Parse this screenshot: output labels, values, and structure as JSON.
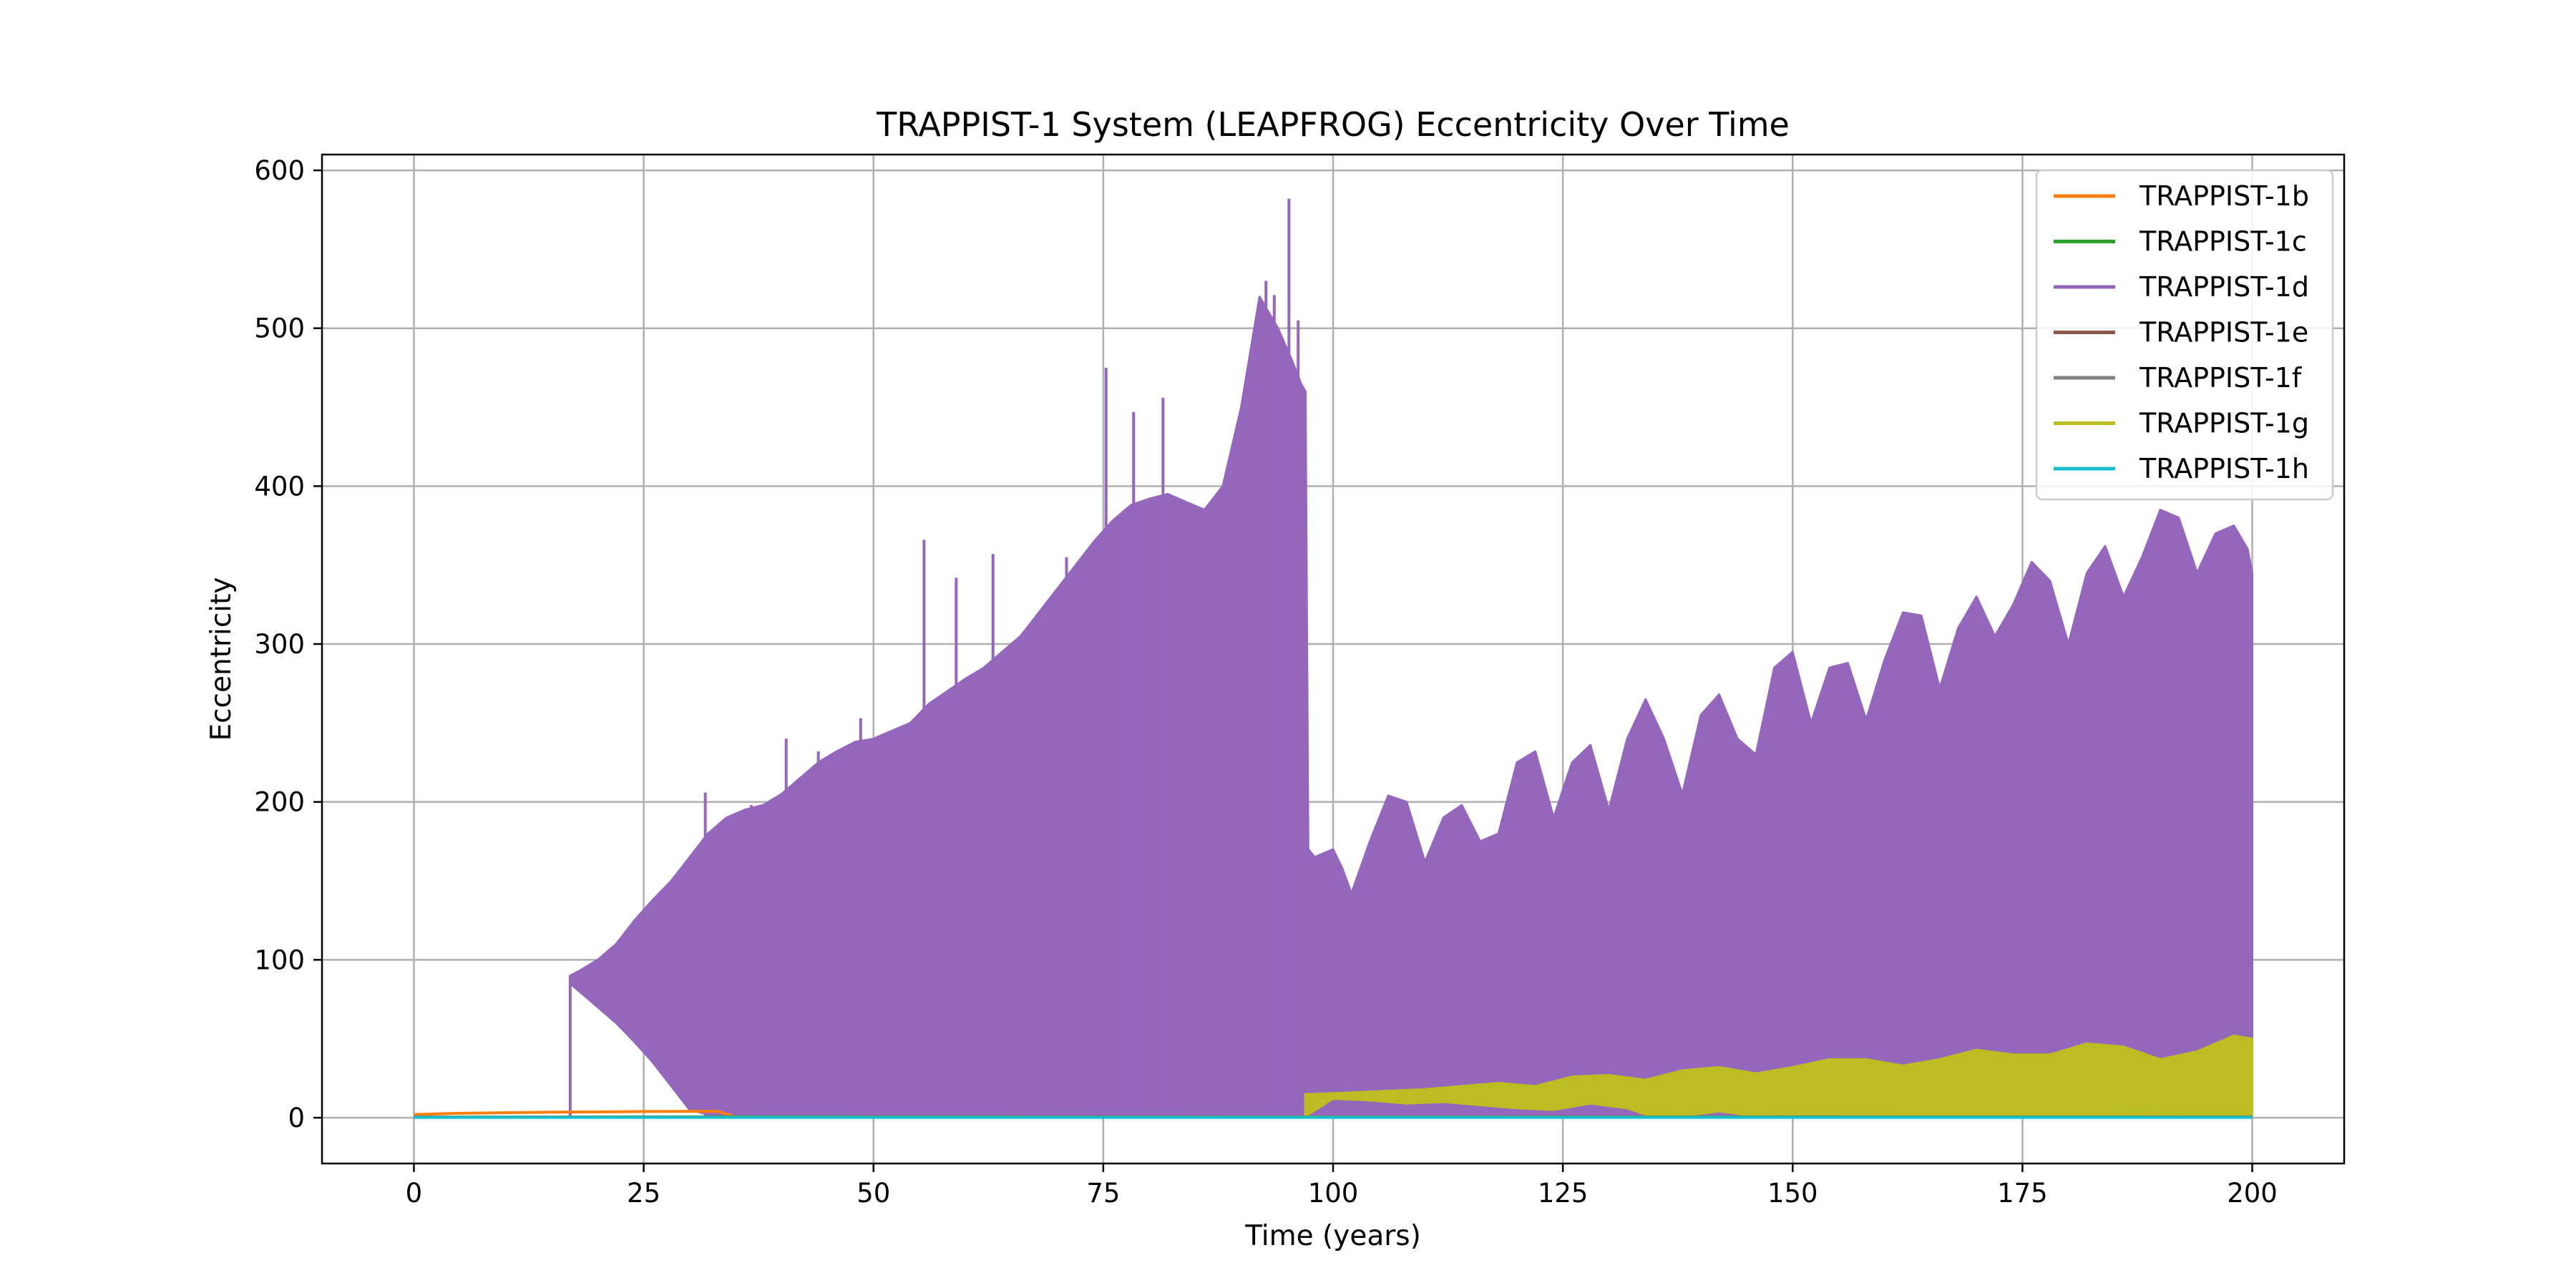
{
  "chart_data": {
    "type": "line",
    "title": "TRAPPIST-1 System (LEAPFROG) Eccentricity Over Time",
    "xlabel": "Time (years)",
    "ylabel": "Eccentricity",
    "xlim": [
      -10,
      210
    ],
    "ylim": [
      -29,
      610
    ],
    "xticks": [
      0,
      25,
      50,
      75,
      100,
      125,
      150,
      175,
      200
    ],
    "yticks": [
      0,
      100,
      200,
      300,
      400,
      500,
      600
    ],
    "grid": true,
    "legend_position": "top-right",
    "series": [
      {
        "name": "TRAPPIST-1b",
        "color": "#ff7f0e",
        "points": [
          [
            0,
            2
          ],
          [
            5,
            2.8
          ],
          [
            10,
            3.2
          ],
          [
            15,
            3.5
          ],
          [
            20,
            3.7
          ],
          [
            25,
            3.9
          ],
          [
            30,
            4.0
          ],
          [
            33,
            4.1
          ],
          [
            34.5,
            1.5
          ],
          [
            35,
            0.5
          ],
          [
            200,
            0.5
          ]
        ]
      },
      {
        "name": "TRAPPIST-1c",
        "color": "#2ca02c",
        "points": [
          [
            0,
            0.4
          ],
          [
            35,
            0.6
          ],
          [
            100,
            0.4
          ],
          [
            150,
            0.5
          ],
          [
            200,
            0.4
          ]
        ]
      },
      {
        "name": "TRAPPIST-1d",
        "color": "#9467bd",
        "upper_envelope": [
          [
            17,
            90
          ],
          [
            18,
            93
          ],
          [
            20,
            100
          ],
          [
            22,
            110
          ],
          [
            24,
            125
          ],
          [
            26,
            138
          ],
          [
            28,
            150
          ],
          [
            30,
            165
          ],
          [
            32,
            180
          ],
          [
            34,
            190
          ],
          [
            36,
            195
          ],
          [
            38,
            198
          ],
          [
            40,
            205
          ],
          [
            42,
            215
          ],
          [
            44,
            225
          ],
          [
            46,
            232
          ],
          [
            48,
            238
          ],
          [
            50,
            240
          ],
          [
            52,
            245
          ],
          [
            54,
            250
          ],
          [
            56,
            262
          ],
          [
            58,
            270
          ],
          [
            60,
            278
          ],
          [
            62,
            285
          ],
          [
            64,
            295
          ],
          [
            66,
            305
          ],
          [
            68,
            320
          ],
          [
            70,
            335
          ],
          [
            72,
            350
          ],
          [
            74,
            365
          ],
          [
            76,
            378
          ],
          [
            78,
            388
          ],
          [
            80,
            392
          ],
          [
            82,
            395
          ],
          [
            84,
            390
          ],
          [
            86,
            385
          ],
          [
            88,
            400
          ],
          [
            90,
            450
          ],
          [
            92,
            520
          ],
          [
            94,
            500
          ],
          [
            95.5,
            480
          ],
          [
            96.5,
            465
          ],
          [
            97,
            460
          ],
          [
            97.3,
            170
          ],
          [
            98,
            165
          ],
          [
            100,
            170
          ],
          [
            101,
            158
          ],
          [
            102,
            142
          ],
          [
            104,
            175
          ],
          [
            106,
            204
          ],
          [
            108,
            200
          ],
          [
            110,
            162
          ],
          [
            112,
            190
          ],
          [
            114,
            198
          ],
          [
            116,
            175
          ],
          [
            118,
            180
          ],
          [
            120,
            225
          ],
          [
            122,
            232
          ],
          [
            124,
            190
          ],
          [
            126,
            225
          ],
          [
            128,
            236
          ],
          [
            130,
            195
          ],
          [
            132,
            240
          ],
          [
            134,
            265
          ],
          [
            136,
            240
          ],
          [
            138,
            205
          ],
          [
            140,
            255
          ],
          [
            142,
            268
          ],
          [
            144,
            240
          ],
          [
            146,
            230
          ],
          [
            148,
            285
          ],
          [
            150,
            295
          ],
          [
            152,
            250
          ],
          [
            154,
            285
          ],
          [
            156,
            288
          ],
          [
            158,
            252
          ],
          [
            160,
            290
          ],
          [
            162,
            320
          ],
          [
            164,
            318
          ],
          [
            166,
            272
          ],
          [
            168,
            310
          ],
          [
            170,
            330
          ],
          [
            172,
            305
          ],
          [
            174,
            325
          ],
          [
            176,
            352
          ],
          [
            178,
            340
          ],
          [
            180,
            300
          ],
          [
            182,
            345
          ],
          [
            184,
            362
          ],
          [
            186,
            330
          ],
          [
            188,
            355
          ],
          [
            190,
            385
          ],
          [
            192,
            380
          ],
          [
            194,
            345
          ],
          [
            196,
            370
          ],
          [
            198,
            375
          ],
          [
            199.5,
            360
          ],
          [
            200,
            345
          ]
        ],
        "lower_envelope": [
          [
            17,
            85
          ],
          [
            18,
            80
          ],
          [
            20,
            70
          ],
          [
            22,
            60
          ],
          [
            24,
            48
          ],
          [
            26,
            35
          ],
          [
            28,
            20
          ],
          [
            30,
            5
          ],
          [
            32,
            2
          ],
          [
            200,
            2
          ]
        ],
        "spikes": [
          [
            55.5,
            366
          ],
          [
            59,
            342
          ],
          [
            63,
            357
          ],
          [
            71,
            355
          ],
          [
            75.3,
            475
          ],
          [
            78.3,
            447
          ],
          [
            81.5,
            456
          ],
          [
            92.7,
            530
          ],
          [
            93.6,
            521
          ],
          [
            95.2,
            582
          ],
          [
            96.2,
            505
          ],
          [
            40.5,
            240
          ],
          [
            44,
            232
          ],
          [
            48.6,
            253
          ],
          [
            31.7,
            206
          ],
          [
            36.7,
            198
          ]
        ]
      },
      {
        "name": "TRAPPIST-1e",
        "color": "#8c564b",
        "points": [
          [
            0,
            0.3
          ],
          [
            200,
            0.3
          ]
        ]
      },
      {
        "name": "TRAPPIST-1f",
        "color": "#7f7f7f",
        "points": [
          [
            0,
            0.3
          ],
          [
            200,
            0.3
          ]
        ]
      },
      {
        "name": "TRAPPIST-1g",
        "color": "#bcbd22",
        "upper_envelope": [
          [
            97,
            15
          ],
          [
            98,
            15
          ],
          [
            102,
            16
          ],
          [
            106,
            17
          ],
          [
            110,
            18
          ],
          [
            114,
            20
          ],
          [
            118,
            22
          ],
          [
            122,
            20
          ],
          [
            126,
            26
          ],
          [
            130,
            27
          ],
          [
            134,
            24
          ],
          [
            138,
            30
          ],
          [
            142,
            32
          ],
          [
            146,
            28
          ],
          [
            150,
            32
          ],
          [
            154,
            37
          ],
          [
            158,
            37
          ],
          [
            162,
            33
          ],
          [
            166,
            37
          ],
          [
            170,
            43
          ],
          [
            174,
            40
          ],
          [
            178,
            40
          ],
          [
            182,
            47
          ],
          [
            186,
            45
          ],
          [
            190,
            37
          ],
          [
            194,
            42
          ],
          [
            198,
            52
          ],
          [
            200,
            50
          ]
        ],
        "lower_envelope": [
          [
            97,
            1
          ],
          [
            100,
            12
          ],
          [
            104,
            11
          ],
          [
            108,
            9
          ],
          [
            112,
            10
          ],
          [
            116,
            8
          ],
          [
            120,
            6
          ],
          [
            124,
            5
          ],
          [
            128,
            9
          ],
          [
            132,
            6
          ],
          [
            134,
            2
          ],
          [
            138,
            1
          ],
          [
            142,
            4
          ],
          [
            146,
            1
          ],
          [
            150,
            2
          ],
          [
            200,
            2
          ]
        ]
      },
      {
        "name": "TRAPPIST-1h",
        "color": "#17becf",
        "points": [
          [
            0,
            0.2
          ],
          [
            200,
            0.2
          ]
        ]
      }
    ]
  }
}
